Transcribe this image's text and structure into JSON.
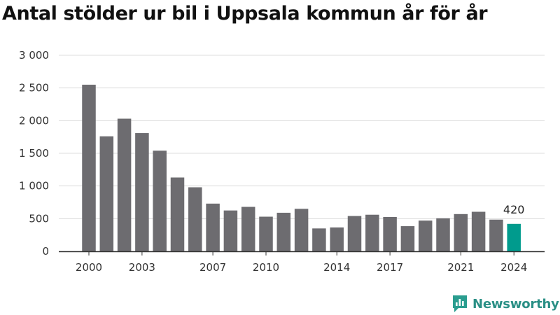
{
  "title": "Antal stölder ur bil i Uppsala kommun år för år",
  "brand": {
    "name": "Newsworthy",
    "color": "#2a9d8f"
  },
  "colors": {
    "bar": "#6d6c70",
    "highlight": "#009b8d",
    "grid": "#dddddd",
    "axis": "#333333"
  },
  "chart_data": {
    "type": "bar",
    "title": "Antal stölder ur bil i Uppsala kommun år för år",
    "xlabel": "",
    "ylabel": "",
    "ylim": [
      0,
      3000
    ],
    "yticks": [
      0,
      500,
      1000,
      1500,
      2000,
      2500,
      3000
    ],
    "ytick_labels": [
      "0",
      "500",
      "1 000",
      "1 500",
      "2 000",
      "2 500",
      "3 000"
    ],
    "xtick_labels": [
      "2000",
      "2003",
      "2007",
      "2010",
      "2014",
      "2017",
      "2021",
      "2024"
    ],
    "grid": true,
    "categories": [
      2000,
      2001,
      2002,
      2003,
      2004,
      2005,
      2006,
      2007,
      2008,
      2009,
      2010,
      2011,
      2012,
      2013,
      2014,
      2015,
      2016,
      2017,
      2018,
      2019,
      2020,
      2021,
      2022,
      2023,
      2024
    ],
    "values": [
      2550,
      1760,
      2030,
      1810,
      1540,
      1130,
      980,
      730,
      625,
      680,
      530,
      590,
      650,
      350,
      365,
      540,
      560,
      525,
      385,
      470,
      505,
      570,
      605,
      485,
      420
    ],
    "highlight": {
      "category": 2024,
      "label": "420"
    }
  }
}
